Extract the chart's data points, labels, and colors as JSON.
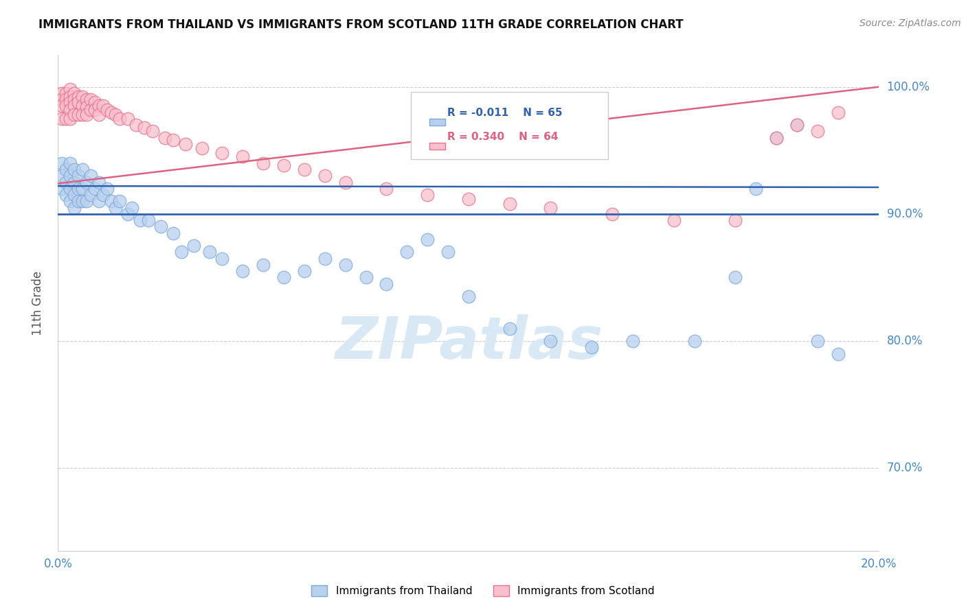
{
  "title": "IMMIGRANTS FROM THAILAND VS IMMIGRANTS FROM SCOTLAND 11TH GRADE CORRELATION CHART",
  "source": "Source: ZipAtlas.com",
  "ylabel": "11th Grade",
  "xlim": [
    0.0,
    0.2
  ],
  "ylim": [
    0.635,
    1.025
  ],
  "yticks": [
    0.7,
    0.8,
    0.9,
    1.0
  ],
  "yticklabels": [
    "70.0%",
    "80.0%",
    "90.0%",
    "100.0%"
  ],
  "reference_line_y": 0.9,
  "reference_line_color": "#3060b0",
  "series_thailand": {
    "color": "#b8d0ee",
    "edge_color": "#7aaad8",
    "label": "Immigrants from Thailand",
    "R": -0.011,
    "N": 65,
    "trend_color": "#3060b0",
    "x": [
      0.001,
      0.001,
      0.001,
      0.002,
      0.002,
      0.002,
      0.003,
      0.003,
      0.003,
      0.003,
      0.004,
      0.004,
      0.004,
      0.004,
      0.005,
      0.005,
      0.005,
      0.006,
      0.006,
      0.006,
      0.007,
      0.007,
      0.008,
      0.008,
      0.009,
      0.01,
      0.01,
      0.011,
      0.012,
      0.013,
      0.014,
      0.015,
      0.017,
      0.018,
      0.02,
      0.022,
      0.025,
      0.028,
      0.03,
      0.033,
      0.037,
      0.04,
      0.045,
      0.05,
      0.055,
      0.06,
      0.065,
      0.07,
      0.075,
      0.08,
      0.085,
      0.09,
      0.095,
      0.1,
      0.11,
      0.12,
      0.13,
      0.14,
      0.155,
      0.165,
      0.17,
      0.175,
      0.18,
      0.185,
      0.19
    ],
    "y": [
      0.94,
      0.93,
      0.92,
      0.935,
      0.925,
      0.915,
      0.94,
      0.93,
      0.92,
      0.91,
      0.935,
      0.925,
      0.915,
      0.905,
      0.93,
      0.92,
      0.91,
      0.935,
      0.92,
      0.91,
      0.925,
      0.91,
      0.93,
      0.915,
      0.92,
      0.925,
      0.91,
      0.915,
      0.92,
      0.91,
      0.905,
      0.91,
      0.9,
      0.905,
      0.895,
      0.895,
      0.89,
      0.885,
      0.87,
      0.875,
      0.87,
      0.865,
      0.855,
      0.86,
      0.85,
      0.855,
      0.865,
      0.86,
      0.85,
      0.845,
      0.87,
      0.88,
      0.87,
      0.835,
      0.81,
      0.8,
      0.795,
      0.8,
      0.8,
      0.85,
      0.92,
      0.96,
      0.97,
      0.8,
      0.79
    ]
  },
  "series_scotland": {
    "color": "#f8c0cc",
    "edge_color": "#e87090",
    "label": "Immigrants from Scotland",
    "R": 0.34,
    "N": 64,
    "trend_color": "#e06080",
    "x": [
      0.001,
      0.001,
      0.001,
      0.001,
      0.002,
      0.002,
      0.002,
      0.002,
      0.003,
      0.003,
      0.003,
      0.003,
      0.003,
      0.004,
      0.004,
      0.004,
      0.004,
      0.005,
      0.005,
      0.005,
      0.006,
      0.006,
      0.006,
      0.007,
      0.007,
      0.007,
      0.008,
      0.008,
      0.009,
      0.009,
      0.01,
      0.01,
      0.011,
      0.012,
      0.013,
      0.014,
      0.015,
      0.017,
      0.019,
      0.021,
      0.023,
      0.026,
      0.028,
      0.031,
      0.035,
      0.04,
      0.045,
      0.05,
      0.055,
      0.06,
      0.065,
      0.07,
      0.08,
      0.09,
      0.1,
      0.11,
      0.12,
      0.135,
      0.15,
      0.165,
      0.175,
      0.18,
      0.185,
      0.19
    ],
    "y": [
      0.995,
      0.99,
      0.985,
      0.975,
      0.995,
      0.99,
      0.985,
      0.975,
      0.998,
      0.992,
      0.988,
      0.982,
      0.975,
      0.995,
      0.99,
      0.985,
      0.978,
      0.992,
      0.988,
      0.978,
      0.992,
      0.985,
      0.978,
      0.99,
      0.984,
      0.978,
      0.99,
      0.982,
      0.988,
      0.982,
      0.985,
      0.978,
      0.985,
      0.982,
      0.98,
      0.978,
      0.975,
      0.975,
      0.97,
      0.968,
      0.965,
      0.96,
      0.958,
      0.955,
      0.952,
      0.948,
      0.945,
      0.94,
      0.938,
      0.935,
      0.93,
      0.925,
      0.92,
      0.915,
      0.912,
      0.908,
      0.905,
      0.9,
      0.895,
      0.895,
      0.96,
      0.97,
      0.965,
      0.98
    ]
  },
  "background_color": "#ffffff",
  "grid_color": "#cccccc",
  "title_color": "#111111",
  "axis_label_color": "#555555",
  "tick_color": "#4488cc",
  "watermark_color": "#d8e8f4",
  "watermark": "ZIPatlas"
}
